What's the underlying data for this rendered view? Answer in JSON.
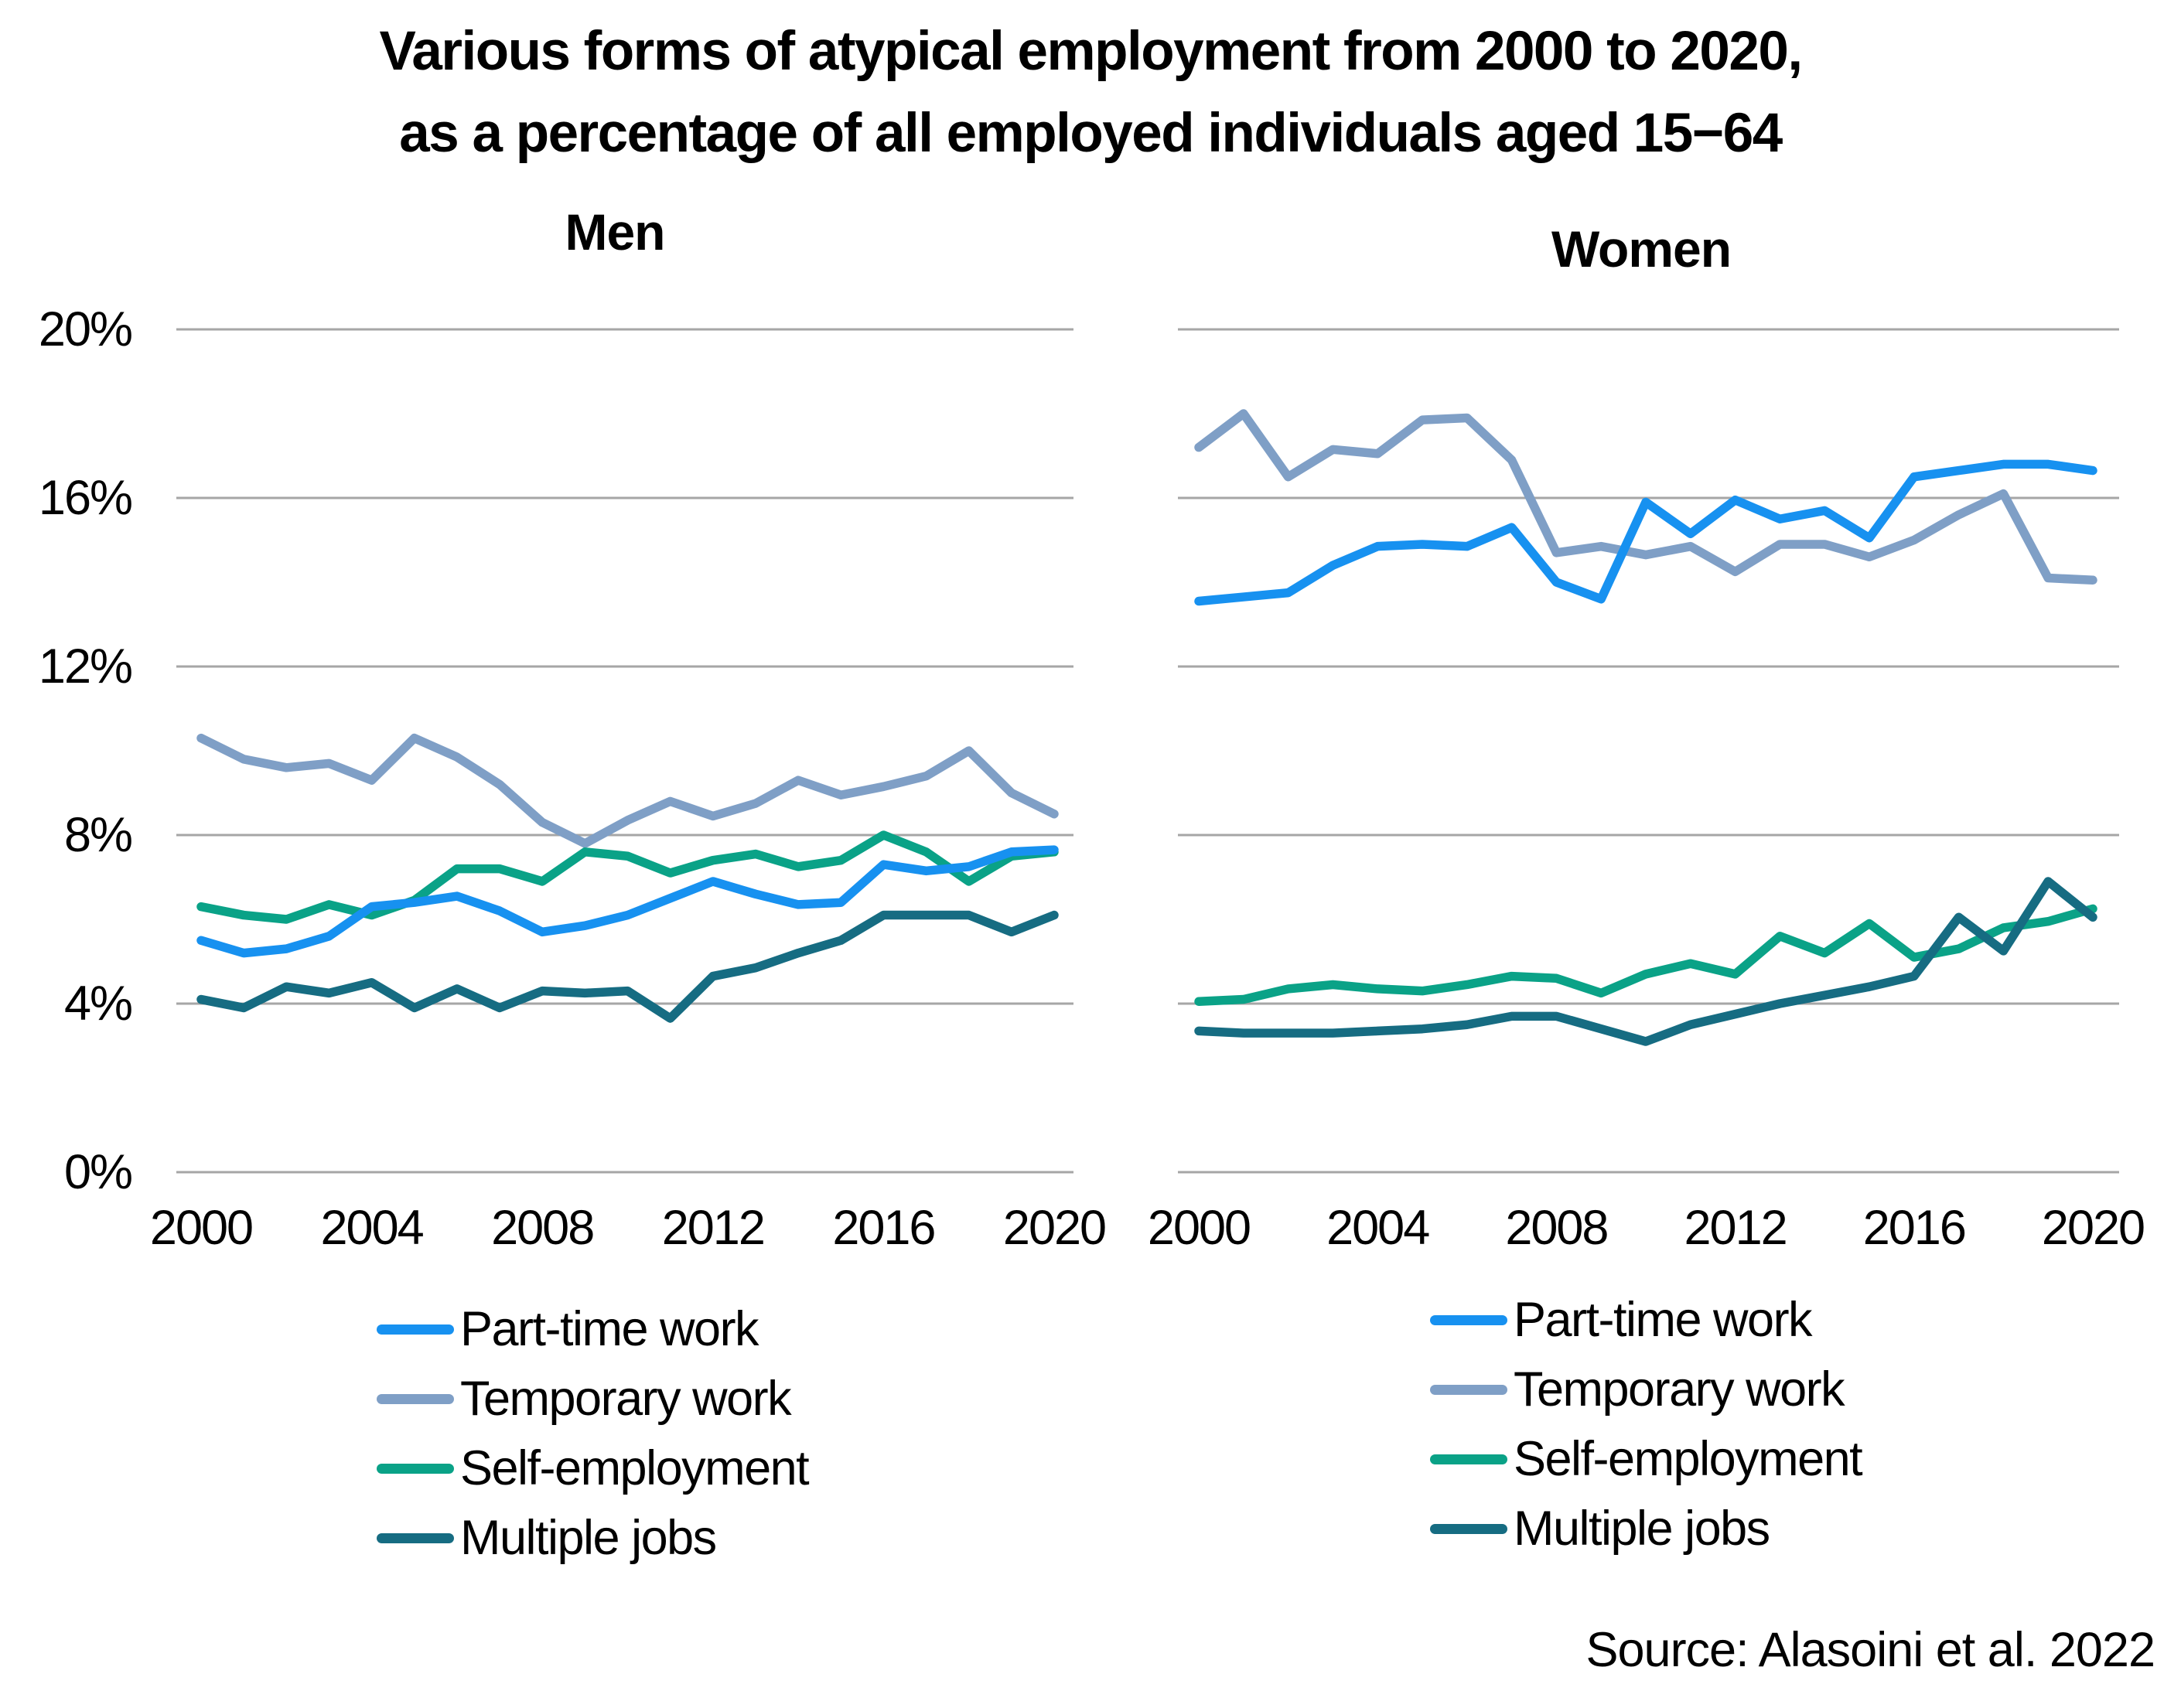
{
  "title": {
    "line1": "Various forms of atypical employment from 2000 to 2020,",
    "line2": "as a percentage of all employed individuals aged 15−64"
  },
  "source": "Source: Alasoini et al. 2022",
  "colors": {
    "part_time": "#1791F0",
    "temporary": "#7F9FC6",
    "self_employment": "#0AA287",
    "multiple_jobs": "#166C82",
    "gridline": "#A6A6A6",
    "text": "#000000"
  },
  "y_axis": {
    "tick_labels": [
      "0%",
      "4%",
      "8%",
      "12%",
      "16%",
      "20%"
    ],
    "tick_values": [
      0,
      4,
      8,
      12,
      16,
      20
    ],
    "min": 0,
    "max": 20,
    "grid": "on"
  },
  "x_axis": {
    "tick_labels": [
      "2000",
      "2004",
      "2008",
      "2012",
      "2016",
      "2020"
    ],
    "tick_values": [
      2000,
      2004,
      2008,
      2012,
      2016,
      2020
    ]
  },
  "legend": {
    "position": "below",
    "entries": [
      {
        "label": "Part-time work",
        "color_key": "part_time"
      },
      {
        "label": "Temporary work",
        "color_key": "temporary"
      },
      {
        "label": "Self-employment",
        "color_key": "self_employment"
      },
      {
        "label": "Multiple jobs",
        "color_key": "multiple_jobs"
      }
    ]
  },
  "chart_data": [
    {
      "type": "line",
      "title": "Men",
      "x": [
        2000,
        2001,
        2002,
        2003,
        2004,
        2005,
        2006,
        2007,
        2008,
        2009,
        2010,
        2011,
        2012,
        2013,
        2014,
        2015,
        2016,
        2017,
        2018,
        2019,
        2020
      ],
      "ylim": [
        0,
        20
      ],
      "series": [
        {
          "name": "Part-time work",
          "color_key": "part_time",
          "values": [
            5.5,
            5.2,
            5.3,
            5.6,
            6.3,
            6.4,
            6.55,
            6.2,
            5.7,
            5.85,
            6.1,
            6.5,
            6.9,
            6.6,
            6.35,
            6.4,
            7.3,
            7.15,
            7.25,
            7.6,
            7.65
          ]
        },
        {
          "name": "Temporary work",
          "color_key": "temporary",
          "values": [
            10.3,
            9.8,
            9.6,
            9.7,
            9.3,
            10.3,
            9.85,
            9.2,
            8.3,
            7.8,
            8.35,
            8.8,
            8.45,
            8.75,
            9.3,
            8.95,
            9.15,
            9.4,
            10.0,
            9.0,
            8.5
          ]
        },
        {
          "name": "Self-employment",
          "color_key": "self_employment",
          "values": [
            6.3,
            6.1,
            6.0,
            6.35,
            6.1,
            6.45,
            7.2,
            7.2,
            6.9,
            7.6,
            7.5,
            7.1,
            7.4,
            7.55,
            7.25,
            7.4,
            8.0,
            7.6,
            6.9,
            7.5,
            7.6
          ]
        },
        {
          "name": "Multiple jobs",
          "color_key": "multiple_jobs",
          "values": [
            4.1,
            3.9,
            4.4,
            4.25,
            4.5,
            3.9,
            4.35,
            3.9,
            4.3,
            4.25,
            4.3,
            3.65,
            4.65,
            4.85,
            5.2,
            5.5,
            6.1,
            6.1,
            6.1,
            5.7,
            6.1
          ]
        }
      ]
    },
    {
      "type": "line",
      "title": "Women",
      "x": [
        2000,
        2001,
        2002,
        2003,
        2004,
        2005,
        2006,
        2007,
        2008,
        2009,
        2010,
        2011,
        2012,
        2013,
        2014,
        2015,
        2016,
        2017,
        2018,
        2019,
        2020
      ],
      "ylim": [
        0,
        20
      ],
      "series": [
        {
          "name": "Part-time work",
          "color_key": "part_time",
          "values": [
            13.55,
            13.65,
            13.75,
            14.4,
            14.85,
            14.9,
            14.85,
            15.3,
            14.0,
            13.6,
            15.9,
            15.15,
            15.95,
            15.5,
            15.7,
            15.05,
            16.5,
            16.65,
            16.8,
            16.8,
            16.65
          ]
        },
        {
          "name": "Temporary work",
          "color_key": "temporary",
          "values": [
            17.2,
            18.0,
            16.5,
            17.15,
            17.05,
            17.85,
            17.9,
            16.9,
            14.7,
            14.85,
            14.65,
            14.85,
            14.25,
            14.9,
            14.9,
            14.6,
            15.0,
            15.6,
            16.1,
            14.1,
            14.05
          ]
        },
        {
          "name": "Self-employment",
          "color_key": "self_employment",
          "values": [
            4.05,
            4.1,
            4.35,
            4.45,
            4.35,
            4.3,
            4.45,
            4.65,
            4.6,
            4.25,
            4.7,
            4.95,
            4.7,
            5.6,
            5.2,
            5.9,
            5.1,
            5.3,
            5.8,
            5.95,
            6.25
          ]
        },
        {
          "name": "Multiple jobs",
          "color_key": "multiple_jobs",
          "values": [
            3.35,
            3.3,
            3.3,
            3.3,
            3.35,
            3.4,
            3.5,
            3.7,
            3.7,
            3.4,
            3.1,
            3.5,
            3.75,
            4.0,
            4.2,
            4.4,
            4.65,
            6.05,
            5.25,
            6.9,
            6.05
          ]
        }
      ]
    }
  ]
}
